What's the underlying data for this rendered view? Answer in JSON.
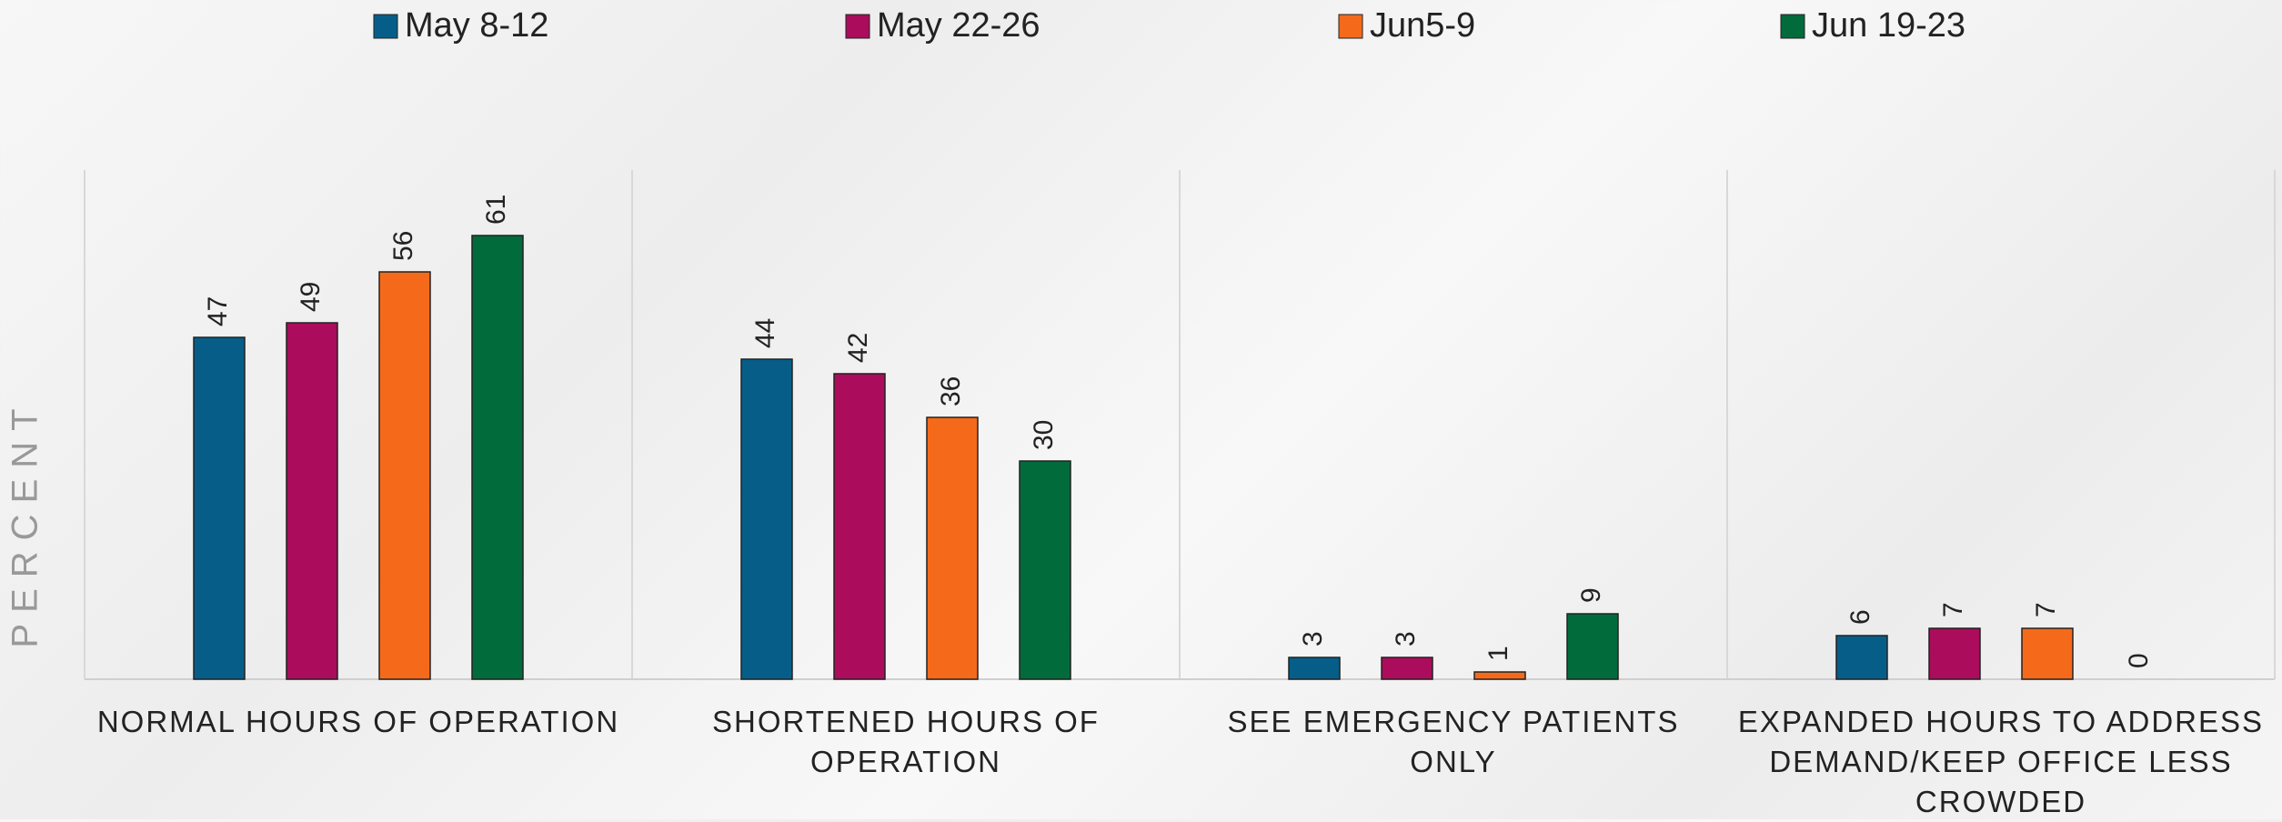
{
  "chart_data": {
    "type": "bar",
    "y_label": "PERCENT",
    "categories": [
      "NORMAL HOURS OF OPERATION",
      "SHORTENED HOURS OF OPERATION",
      "SEE EMERGENCY PATIENTS ONLY",
      "EXPANDED HOURS TO ADDRESS DEMAND/KEEP OFFICE LESS CROWDED"
    ],
    "series": [
      {
        "name": "May 8-12",
        "color": "#065e88",
        "values": [
          47,
          44,
          3,
          6
        ]
      },
      {
        "name": "May 22-26",
        "color": "#ab0d5c",
        "values": [
          49,
          42,
          3,
          7
        ]
      },
      {
        "name": "Jun5-9",
        "color": "#f56a1a",
        "values": [
          56,
          36,
          1,
          7
        ]
      },
      {
        "name": "Jun 19-23",
        "color": "#026b3c",
        "values": [
          61,
          30,
          9,
          0
        ]
      }
    ],
    "ylim": [
      0,
      70
    ],
    "legend": "top"
  }
}
